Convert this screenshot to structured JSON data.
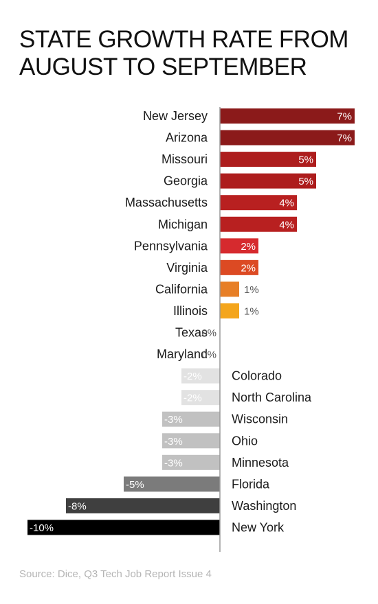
{
  "title_lines": [
    "STATE GROWTH RATE FROM",
    "AUGUST TO SEPTEMBER"
  ],
  "source": "Source: Dice, Q3 Tech Job Report Issue 4",
  "chart_data": {
    "type": "bar",
    "orientation": "horizontal",
    "title": "STATE GROWTH RATE FROM AUGUST TO SEPTEMBER",
    "xlabel": "",
    "ylabel": "",
    "grid": false,
    "categories": [
      "New Jersey",
      "Arizona",
      "Missouri",
      "Georgia",
      "Massachusetts",
      "Michigan",
      "Pennsylvania",
      "Virginia",
      "California",
      "Illinois",
      "Texas",
      "Maryland",
      "Colorado",
      "North Carolina",
      "Wisconsin",
      "Ohio",
      "Minnesota",
      "Florida",
      "Washington",
      "New York"
    ],
    "values": [
      7,
      7,
      5,
      5,
      4,
      4,
      2,
      2,
      1,
      1,
      0,
      0,
      -2,
      -2,
      -3,
      -3,
      -3,
      -5,
      -8,
      -10
    ],
    "labels": [
      "7%",
      "7%",
      "5%",
      "5%",
      "4%",
      "4%",
      "2%",
      "2%",
      "1%",
      "1%",
      "0%",
      "0%",
      "-2%",
      "-2%",
      "-3%",
      "-3%",
      "-3%",
      "-5%",
      "-8%",
      "-10%"
    ],
    "colors": [
      "#8b1a1a",
      "#8b1a1a",
      "#ad1d1d",
      "#ad1d1d",
      "#b82020",
      "#b82020",
      "#d62a2e",
      "#dc4a23",
      "#e77f27",
      "#f4a51c",
      "#ffffff",
      "#ffffff",
      "#e2e2e2",
      "#e2e2e2",
      "#c1c1c1",
      "#c1c1c1",
      "#c1c1c1",
      "#7b7b7b",
      "#3f3f3f",
      "#000000"
    ],
    "axis_color": "#9a9a9a",
    "xlim": [
      -10,
      7
    ]
  }
}
